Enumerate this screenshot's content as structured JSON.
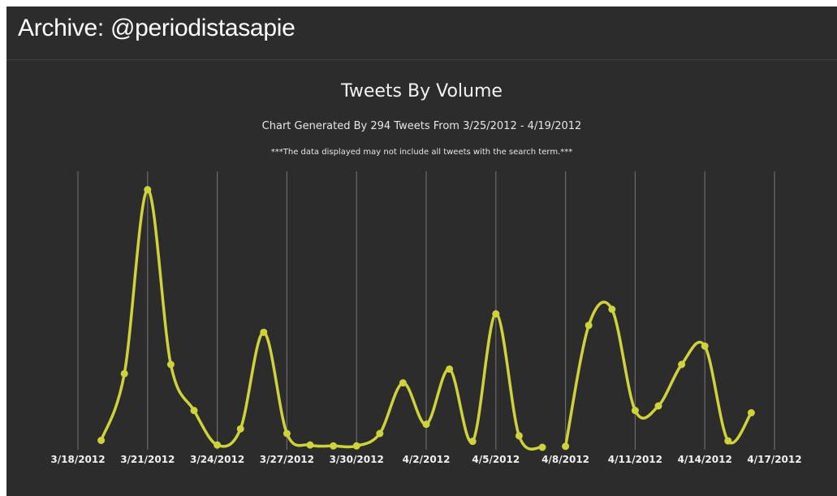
{
  "header": {
    "title": "Archive: @periodistasapie"
  },
  "chart_data": {
    "type": "line",
    "title": "Tweets By Volume",
    "subtitle": "Chart Generated By 294 Tweets From 3/25/2012 - 4/19/2012",
    "note": "***The data displayed may not include all tweets with the search term.***",
    "x_tick_labels": [
      "3/18/2012",
      "3/21/2012",
      "3/24/2012",
      "3/27/2012",
      "3/30/2012",
      "4/2/2012",
      "4/5/2012",
      "4/8/2012",
      "4/11/2012",
      "4/14/2012",
      "4/17/2012"
    ],
    "x_tick_days": [
      0,
      3,
      6,
      9,
      12,
      15,
      18,
      21,
      24,
      27,
      30
    ],
    "ylim": [
      0,
      60
    ],
    "grid": "vertical",
    "series_color": "#cfd33a",
    "gridline_color": "#6a6a6a",
    "segments": [
      {
        "x": [
          1,
          2,
          3,
          4,
          5,
          6,
          7,
          8,
          9,
          10,
          11,
          12,
          13,
          14,
          15,
          16,
          17,
          18,
          19,
          20
        ],
        "y": [
          1.5,
          16,
          56,
          18,
          8,
          0.5,
          4,
          25,
          3,
          0.5,
          0.3,
          0.3,
          3,
          14,
          5,
          17,
          1.3,
          29,
          2.5,
          0
        ]
      },
      {
        "x": [
          21,
          22,
          23,
          24,
          25,
          26,
          27,
          28,
          29
        ],
        "y": [
          0.2,
          26.5,
          30,
          8,
          9,
          18,
          22,
          1.4,
          7.5
        ]
      }
    ]
  }
}
